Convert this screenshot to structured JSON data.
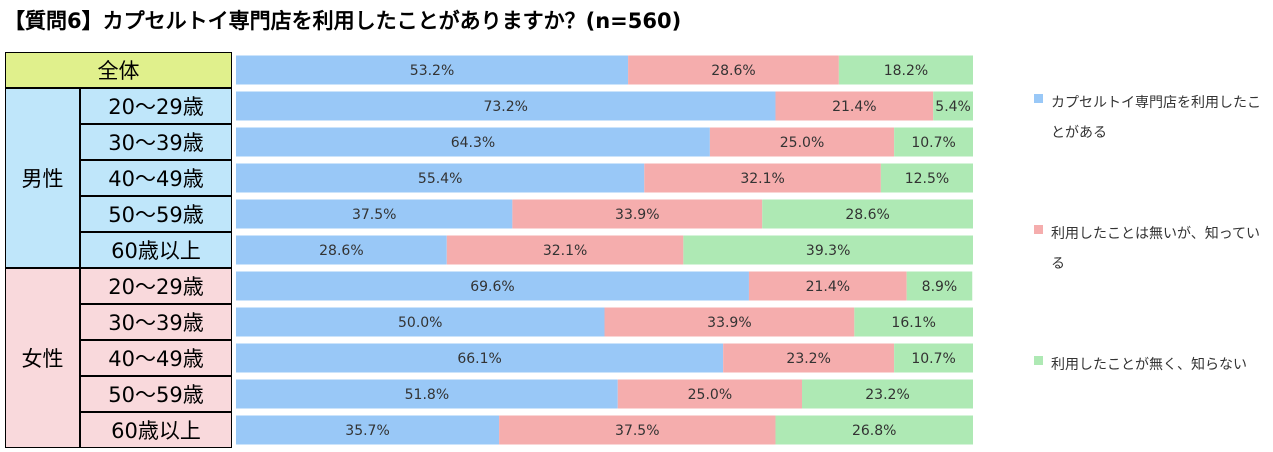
{
  "title": "【質問6】カプセルトイ専門店を利用したことがありますか？(n=560)",
  "colors": {
    "used": "#99c8f7",
    "known": "#f5adad",
    "unknown": "#aee9b4",
    "total_cell": "#e0f08c",
    "male_cell": "#bfe6fa",
    "female_cell": "#f9d9dc"
  },
  "row_labels": {
    "total": "全体",
    "groups": [
      {
        "label": "男性",
        "items": [
          "20～29歳",
          "30～39歳",
          "40～49歳",
          "50～59歳",
          "60歳以上"
        ]
      },
      {
        "label": "女性",
        "items": [
          "20～29歳",
          "30～39歳",
          "40～49歳",
          "50～59歳",
          "60歳以上"
        ]
      }
    ]
  },
  "legend": [
    {
      "label": "カプセルトイ専門店を利用したことがある",
      "color": "#99c8f7"
    },
    {
      "label": "利用したことは無いが、知っている",
      "color": "#f5adad"
    },
    {
      "label": "利用したことが無く、知らない",
      "color": "#aee9b4"
    }
  ],
  "chart_data": {
    "type": "bar",
    "stacked": true,
    "orientation": "horizontal",
    "percent_scale": true,
    "xlim": [
      0,
      100
    ],
    "categories": [
      "全体",
      "男性 20～29歳",
      "男性 30～39歳",
      "男性 40～49歳",
      "男性 50～59歳",
      "男性 60歳以上",
      "女性 20～29歳",
      "女性 30～39歳",
      "女性 40～49歳",
      "女性 50～59歳",
      "女性 60歳以上"
    ],
    "series": [
      {
        "name": "カプセルトイ専門店を利用したことがある",
        "values": [
          53.2,
          73.2,
          64.3,
          55.4,
          37.5,
          28.6,
          69.6,
          50.0,
          66.1,
          51.8,
          35.7
        ]
      },
      {
        "name": "利用したことは無いが、知っている",
        "values": [
          28.6,
          21.4,
          25.0,
          32.1,
          33.9,
          32.1,
          21.4,
          33.9,
          23.2,
          25.0,
          37.5
        ]
      },
      {
        "name": "利用したことが無く、知らない",
        "values": [
          18.2,
          5.4,
          10.7,
          12.5,
          28.6,
          39.3,
          8.9,
          16.1,
          10.7,
          23.2,
          26.8
        ]
      }
    ],
    "data_labels": [
      [
        "53.2%",
        "28.6%",
        "18.2%"
      ],
      [
        "73.2%",
        "21.4%",
        "5.4%"
      ],
      [
        "64.3%",
        "25.0%",
        "10.7%"
      ],
      [
        "55.4%",
        "32.1%",
        "12.5%"
      ],
      [
        "37.5%",
        "33.9%",
        "28.6%"
      ],
      [
        "28.6%",
        "32.1%",
        "39.3%"
      ],
      [
        "69.6%",
        "21.4%",
        "8.9%"
      ],
      [
        "50.0%",
        "33.9%",
        "16.1%"
      ],
      [
        "66.1%",
        "23.2%",
        "10.7%"
      ],
      [
        "51.8%",
        "25.0%",
        "23.2%"
      ],
      [
        "35.7%",
        "37.5%",
        "26.8%"
      ]
    ],
    "legend_position": "right",
    "grid": false
  }
}
